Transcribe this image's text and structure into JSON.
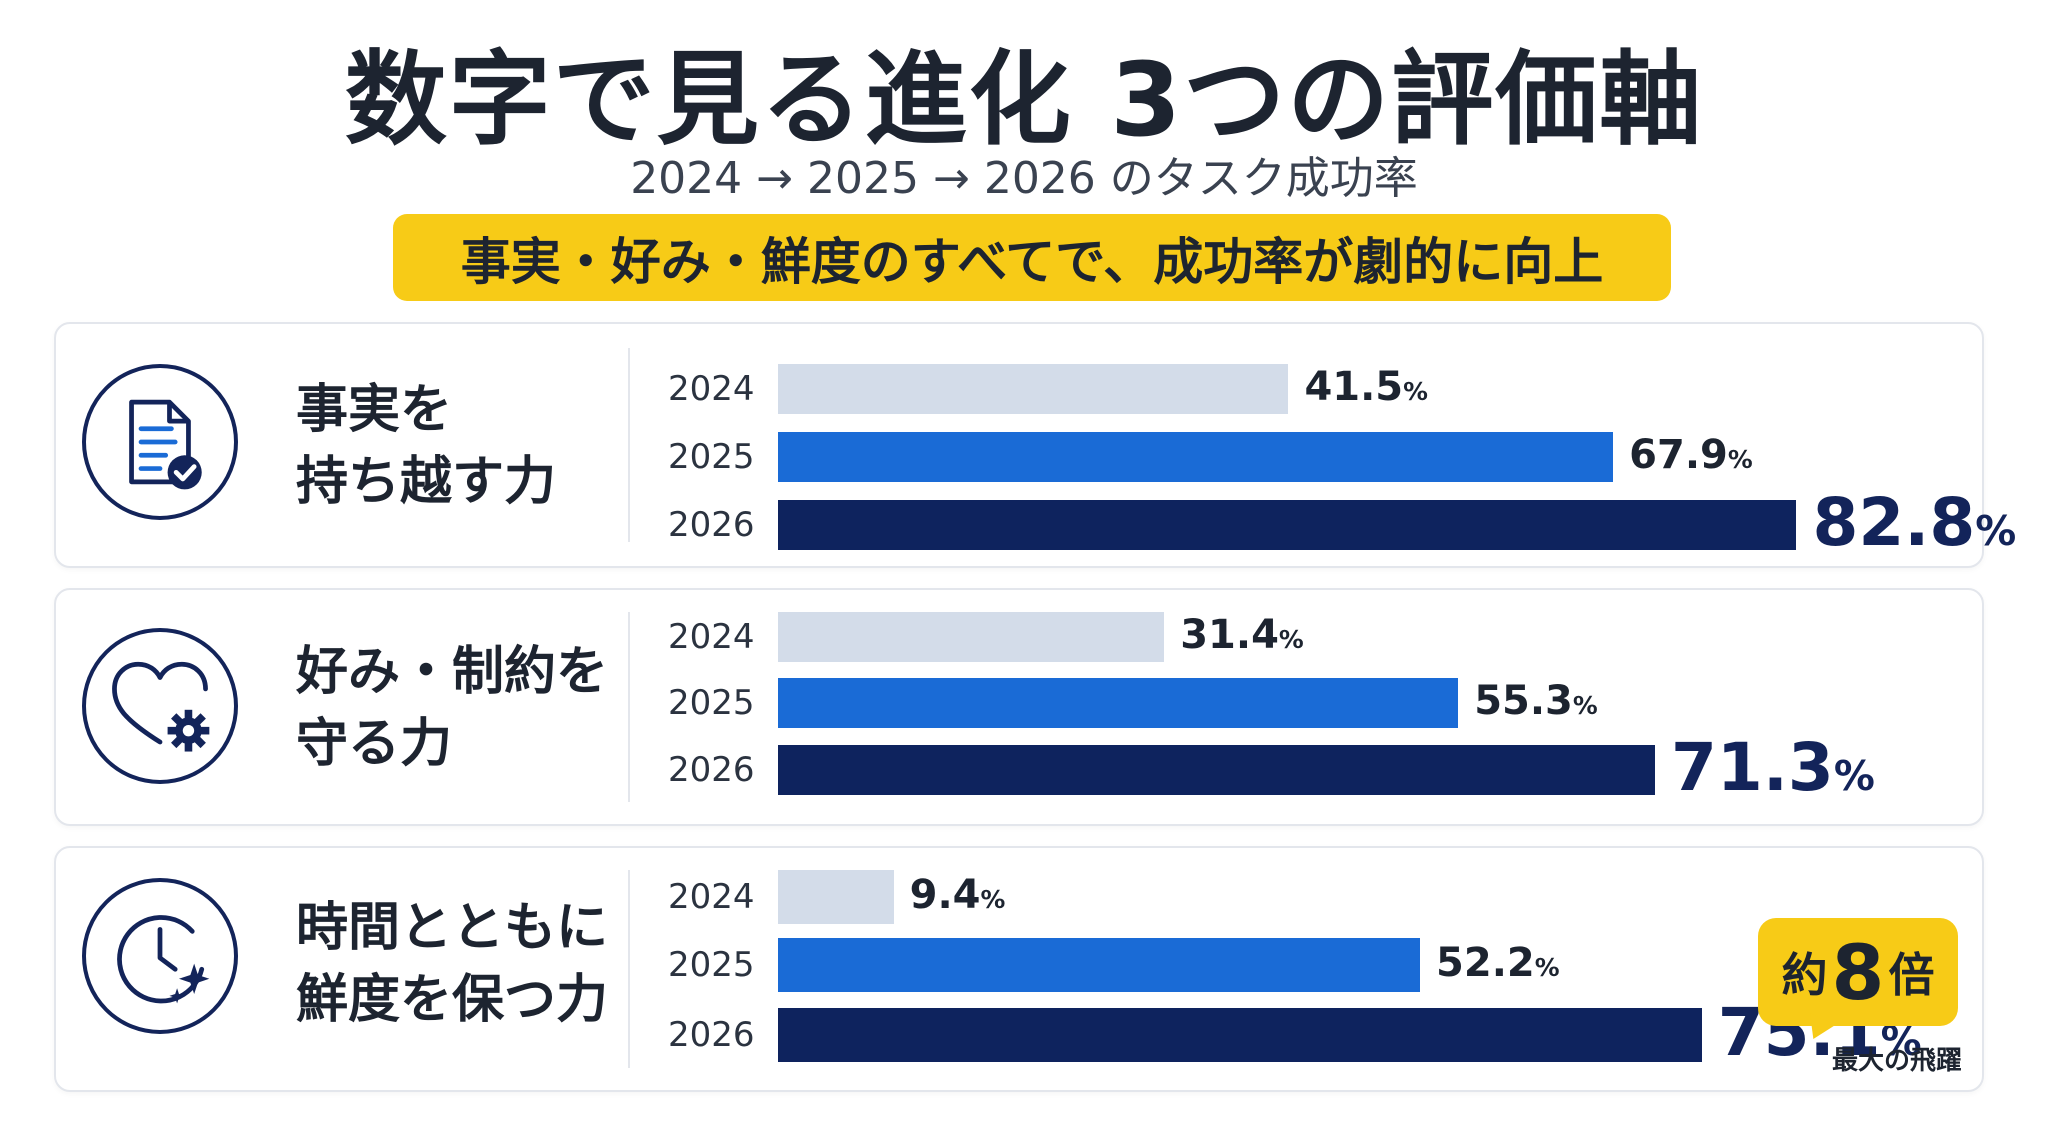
{
  "header": {
    "title": "数字で見る進化 3つの評価軸",
    "subtitle": "2024 → 2025 → 2026 のタスク成功率",
    "banner": "事実・好み・鮮度のすべてで、成功率が劇的に向上"
  },
  "colors": {
    "2024": "#d3dce9",
    "2025": "#1a6bd6",
    "2026": "#0e235e",
    "accent": "#f7cb17"
  },
  "chart_data": [
    {
      "type": "bar",
      "orientation": "horizontal",
      "title": "事実を\n持ち越す力",
      "icon": "document-check-icon",
      "categories": [
        "2024",
        "2025",
        "2026"
      ],
      "values": [
        41.5,
        67.9,
        82.8
      ],
      "unit": "%",
      "xlim": [
        0,
        100
      ]
    },
    {
      "type": "bar",
      "orientation": "horizontal",
      "title": "好み・制約を\n守る力",
      "icon": "heart-gear-icon",
      "categories": [
        "2024",
        "2025",
        "2026"
      ],
      "values": [
        31.4,
        55.3,
        71.3
      ],
      "unit": "%",
      "xlim": [
        0,
        100
      ]
    },
    {
      "type": "bar",
      "orientation": "horizontal",
      "title": "時間とともに\n鮮度を保つ力",
      "icon": "clock-sparkle-icon",
      "categories": [
        "2024",
        "2025",
        "2026"
      ],
      "values": [
        9.4,
        52.2,
        75.1
      ],
      "unit": "%",
      "xlim": [
        0,
        100
      ],
      "callout": {
        "prefix": "約",
        "number": "8",
        "suffix": "倍",
        "note": "最大の飛躍"
      }
    }
  ]
}
